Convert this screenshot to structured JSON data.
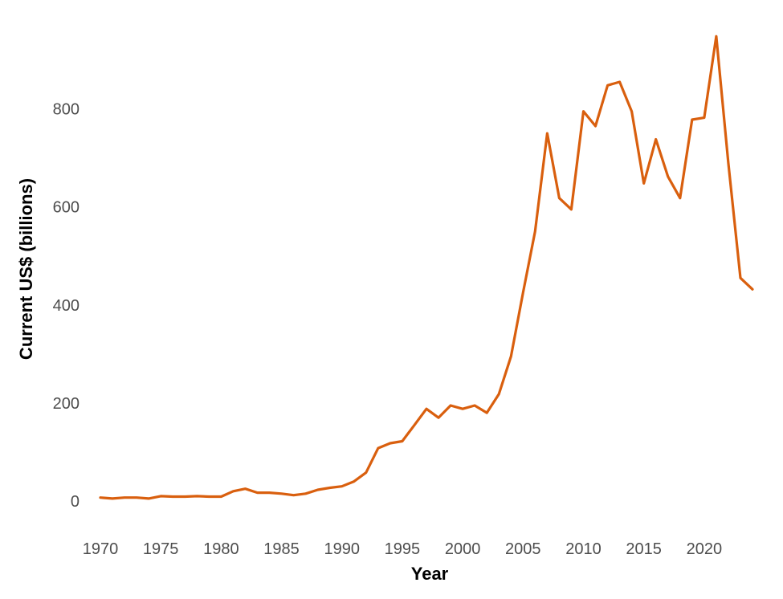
{
  "chart_data": {
    "type": "line",
    "title": "",
    "xlabel": "Year",
    "ylabel": "Current US$ (billions)",
    "xlim": [
      1970,
      2024
    ],
    "ylim": [
      0,
      950
    ],
    "x_ticks": [
      1970,
      1975,
      1980,
      1985,
      1990,
      1995,
      2000,
      2005,
      2010,
      2015,
      2020
    ],
    "y_ticks": [
      0,
      200,
      400,
      600,
      800
    ],
    "grid": false,
    "legend": "none",
    "series": [
      {
        "color": "#d95f0e",
        "x": [
          1970,
          1971,
          1972,
          1973,
          1974,
          1975,
          1976,
          1977,
          1978,
          1979,
          1980,
          1981,
          1982,
          1983,
          1984,
          1985,
          1986,
          1987,
          1988,
          1989,
          1990,
          1991,
          1992,
          1993,
          1994,
          1995,
          1996,
          1997,
          1998,
          1999,
          2000,
          2001,
          2002,
          2003,
          2004,
          2005,
          2006,
          2007,
          2008,
          2009,
          2010,
          2011,
          2012,
          2013,
          2014,
          2015,
          2016,
          2017,
          2018,
          2019,
          2020,
          2021,
          2022,
          2023,
          2024
        ],
        "values": [
          7,
          5,
          7,
          7,
          5,
          10,
          9,
          9,
          10,
          9,
          9,
          20,
          25,
          17,
          17,
          15,
          12,
          15,
          23,
          27,
          30,
          40,
          58,
          108,
          118,
          122,
          155,
          188,
          170,
          195,
          188,
          195,
          180,
          218,
          295,
          425,
          550,
          750,
          618,
          595,
          795,
          765,
          848,
          855,
          795,
          648,
          738,
          662,
          618,
          778,
          782,
          948,
          690,
          455,
          432
        ]
      }
    ]
  }
}
